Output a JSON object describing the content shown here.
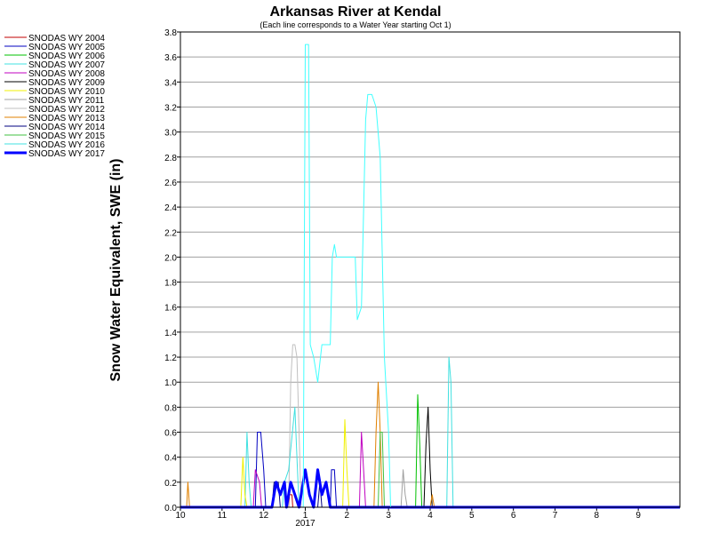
{
  "chart_data": {
    "type": "line",
    "title": "Arkansas River at Kendal",
    "subtitle": "(Each line corresponds to a Water Year starting Oct 1)",
    "ylabel": "Snow Water Equivalent, SWE (in)",
    "xlabel": "",
    "ylim": [
      0,
      3.8
    ],
    "y_ticks": [
      "0.0",
      "0.2",
      "0.4",
      "0.6",
      "0.8",
      "1.0",
      "1.2",
      "1.4",
      "1.6",
      "1.8",
      "2.0",
      "2.2",
      "2.4",
      "2.6",
      "2.8",
      "3.0",
      "3.2",
      "3.4",
      "3.6",
      "3.8"
    ],
    "x_ticks": [
      {
        "label": "10",
        "m": 0
      },
      {
        "label": "11",
        "m": 1
      },
      {
        "label": "12",
        "m": 2
      },
      {
        "label": "1",
        "m": 3
      },
      {
        "label": "2",
        "m": 4
      },
      {
        "label": "3",
        "m": 5
      },
      {
        "label": "4",
        "m": 6
      },
      {
        "label": "5",
        "m": 7
      },
      {
        "label": "6",
        "m": 8
      },
      {
        "label": "7",
        "m": 9
      },
      {
        "label": "8",
        "m": 10
      },
      {
        "label": "9",
        "m": 11
      }
    ],
    "x_year_label": {
      "label": "2017",
      "m": 3
    },
    "xlim": [
      0,
      12
    ],
    "grid": "horizontal",
    "legend_position": "left",
    "series": [
      {
        "name": "SNODAS WY 2004",
        "color": "#c00000",
        "width": 1,
        "points": [
          [
            0,
            0
          ],
          [
            2.6,
            0
          ],
          [
            2.62,
            0.1
          ],
          [
            2.68,
            0.1
          ],
          [
            2.7,
            0
          ],
          [
            12,
            0
          ]
        ]
      },
      {
        "name": "SNODAS WY 2005",
        "color": "#0000c0",
        "width": 1,
        "points": [
          [
            0,
            0
          ],
          [
            1.8,
            0
          ],
          [
            1.85,
            0.6
          ],
          [
            1.93,
            0.6
          ],
          [
            2.0,
            0.3
          ],
          [
            2.05,
            0
          ],
          [
            3.6,
            0
          ],
          [
            3.63,
            0.3
          ],
          [
            3.7,
            0.3
          ],
          [
            3.75,
            0
          ],
          [
            12,
            0
          ]
        ]
      },
      {
        "name": "SNODAS WY 2006",
        "color": "#00c000",
        "width": 1,
        "points": [
          [
            0,
            0
          ],
          [
            5.65,
            0
          ],
          [
            5.7,
            0.9
          ],
          [
            5.75,
            0.5
          ],
          [
            5.8,
            0
          ],
          [
            12,
            0
          ]
        ]
      },
      {
        "name": "SNODAS WY 2007",
        "color": "#40e0e0",
        "width": 1,
        "points": [
          [
            0,
            0
          ],
          [
            1.55,
            0
          ],
          [
            1.6,
            0.6
          ],
          [
            1.65,
            0.2
          ],
          [
            1.7,
            0
          ],
          [
            12,
            0
          ]
        ]
      },
      {
        "name": "SNODAS WY 2008",
        "color": "#c000c0",
        "width": 1,
        "points": [
          [
            0,
            0
          ],
          [
            1.75,
            0
          ],
          [
            1.8,
            0.3
          ],
          [
            1.9,
            0.2
          ],
          [
            1.95,
            0
          ],
          [
            4.3,
            0
          ],
          [
            4.35,
            0.6
          ],
          [
            4.4,
            0.3
          ],
          [
            4.45,
            0
          ],
          [
            12,
            0
          ]
        ]
      },
      {
        "name": "SNODAS WY 2009",
        "color": "#000000",
        "width": 1,
        "points": [
          [
            0,
            0
          ],
          [
            5.85,
            0
          ],
          [
            5.9,
            0.5
          ],
          [
            5.95,
            0.8
          ],
          [
            6.0,
            0.3
          ],
          [
            6.05,
            0
          ],
          [
            12,
            0
          ]
        ]
      },
      {
        "name": "SNODAS WY 2010",
        "color": "#f0f000",
        "width": 1,
        "points": [
          [
            0,
            0
          ],
          [
            1.45,
            0
          ],
          [
            1.5,
            0.4
          ],
          [
            1.55,
            0.1
          ],
          [
            1.6,
            0
          ],
          [
            3.9,
            0
          ],
          [
            3.95,
            0.7
          ],
          [
            4.0,
            0.3
          ],
          [
            4.05,
            0
          ],
          [
            12,
            0
          ]
        ]
      },
      {
        "name": "SNODAS WY 2011",
        "color": "#a0a0a0",
        "width": 1,
        "points": [
          [
            0,
            0
          ],
          [
            5.3,
            0
          ],
          [
            5.35,
            0.3
          ],
          [
            5.4,
            0.1
          ],
          [
            5.45,
            0
          ],
          [
            12,
            0
          ]
        ]
      },
      {
        "name": "SNODAS WY 2012",
        "color": "#c0c0c0",
        "width": 1,
        "points": [
          [
            0,
            0
          ],
          [
            2.6,
            0
          ],
          [
            2.65,
            1.0
          ],
          [
            2.7,
            1.3
          ],
          [
            2.75,
            1.3
          ],
          [
            2.8,
            1.2
          ],
          [
            2.85,
            0.6
          ],
          [
            2.9,
            0
          ],
          [
            12,
            0
          ]
        ]
      },
      {
        "name": "SNODAS WY 2013",
        "color": "#e08000",
        "width": 1,
        "points": [
          [
            0,
            0
          ],
          [
            0.15,
            0
          ],
          [
            0.18,
            0.2
          ],
          [
            0.22,
            0
          ],
          [
            4.65,
            0
          ],
          [
            4.7,
            0.6
          ],
          [
            4.75,
            1.0
          ],
          [
            4.8,
            0.6
          ],
          [
            4.85,
            0
          ],
          [
            6.0,
            0
          ],
          [
            6.05,
            0.1
          ],
          [
            6.1,
            0
          ],
          [
            12,
            0
          ]
        ]
      },
      {
        "name": "SNODAS WY 2014",
        "color": "#000080",
        "width": 1,
        "points": [
          [
            0,
            0
          ],
          [
            2.2,
            0
          ],
          [
            2.25,
            0.2
          ],
          [
            2.35,
            0.2
          ],
          [
            2.4,
            0
          ],
          [
            3.3,
            0
          ],
          [
            3.35,
            0.2
          ],
          [
            3.4,
            0
          ],
          [
            12,
            0
          ]
        ]
      },
      {
        "name": "SNODAS WY 2015",
        "color": "#40c040",
        "width": 1,
        "points": [
          [
            0,
            0
          ],
          [
            4.75,
            0
          ],
          [
            4.8,
            0.6
          ],
          [
            4.85,
            0.6
          ],
          [
            4.9,
            0
          ],
          [
            12,
            0
          ]
        ]
      },
      {
        "name": "SNODAS WY 2016",
        "color": "#40e0e0",
        "width": 1,
        "points": [
          [
            0,
            0
          ],
          [
            2.45,
            0
          ],
          [
            2.5,
            0.2
          ],
          [
            2.6,
            0.3
          ],
          [
            2.75,
            0.8
          ],
          [
            2.8,
            0.4
          ],
          [
            2.85,
            0
          ],
          [
            6.4,
            0
          ],
          [
            6.45,
            1.2
          ],
          [
            6.5,
            1.0
          ],
          [
            6.55,
            0
          ],
          [
            12,
            0
          ]
        ]
      },
      {
        "name": "SNODAS WY 2017",
        "color": "#0000ff",
        "width": 3,
        "points": [
          [
            0,
            0
          ],
          [
            2.2,
            0
          ],
          [
            2.3,
            0.2
          ],
          [
            2.4,
            0.1
          ],
          [
            2.5,
            0.2
          ],
          [
            2.55,
            0
          ],
          [
            2.65,
            0.2
          ],
          [
            2.75,
            0.1
          ],
          [
            2.85,
            0
          ],
          [
            3.0,
            0.3
          ],
          [
            3.1,
            0.1
          ],
          [
            3.2,
            0
          ],
          [
            3.3,
            0.3
          ],
          [
            3.4,
            0.1
          ],
          [
            3.5,
            0.2
          ],
          [
            3.6,
            0
          ],
          [
            12,
            0
          ]
        ]
      },
      {
        "name": "",
        "color": "#40ffff",
        "width": 1,
        "points": [
          [
            2.95,
            0
          ],
          [
            2.97,
            1.5
          ],
          [
            3.0,
            3.7
          ],
          [
            3.08,
            3.7
          ],
          [
            3.12,
            1.3
          ],
          [
            3.2,
            1.2
          ],
          [
            3.3,
            1.0
          ],
          [
            3.4,
            1.3
          ],
          [
            3.6,
            1.3
          ],
          [
            3.65,
            2.0
          ],
          [
            3.7,
            2.1
          ],
          [
            3.75,
            2.0
          ],
          [
            4.2,
            2.0
          ],
          [
            4.25,
            1.5
          ],
          [
            4.35,
            1.6
          ],
          [
            4.45,
            3.1
          ],
          [
            4.5,
            3.3
          ],
          [
            4.6,
            3.3
          ],
          [
            4.7,
            3.2
          ],
          [
            4.8,
            2.8
          ],
          [
            4.9,
            1.2
          ],
          [
            5.0,
            0.6
          ],
          [
            5.05,
            0
          ]
        ]
      }
    ]
  }
}
